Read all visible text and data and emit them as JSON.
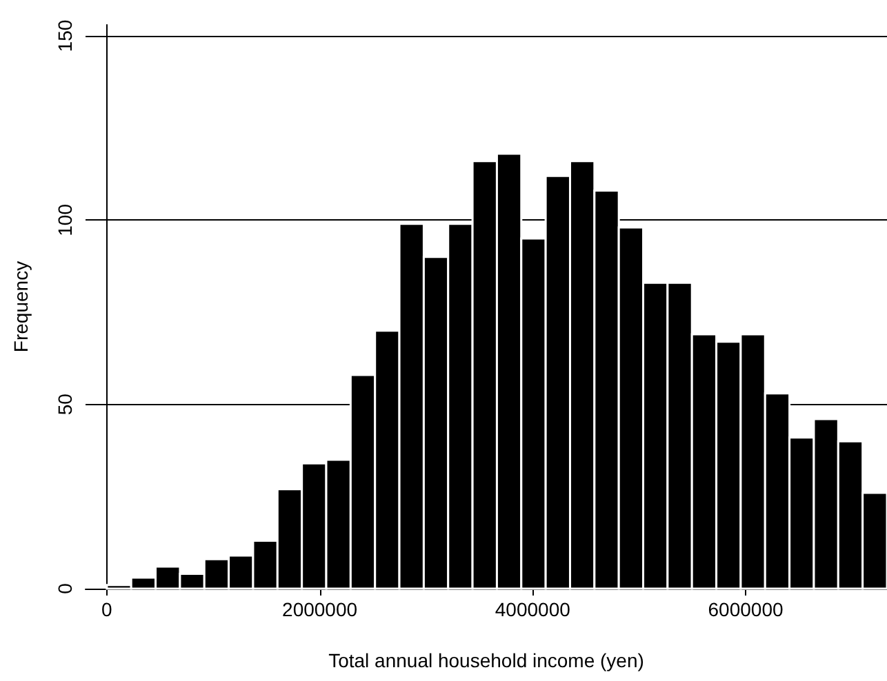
{
  "chart_data": {
    "type": "histogram",
    "xlabel": "Total annual household income (yen)",
    "ylabel": "Frequency",
    "bins": [
      0,
      229000,
      458000,
      687000,
      916000,
      1145000,
      1374000,
      1603000,
      1832000,
      2061000,
      2290000,
      2519000,
      2748000,
      2977000,
      3206000,
      3435000,
      3664000,
      3893000,
      4122000,
      4351000,
      4580000,
      4809000,
      5038000,
      5267000,
      5496000,
      5725000,
      5954000,
      6183000,
      6412000,
      6641000,
      6870000,
      7099000,
      7328000
    ],
    "values": [
      1,
      3,
      6,
      4,
      8,
      9,
      13,
      27,
      34,
      35,
      58,
      70,
      99,
      90,
      99,
      116,
      118,
      95,
      112,
      116,
      108,
      98,
      83,
      83,
      69,
      67,
      69,
      53,
      41,
      46,
      40,
      26
    ],
    "color": "#000000",
    "xlim": [
      -200000,
      7328000
    ],
    "xticks": [
      0,
      2000000,
      4000000,
      6000000
    ],
    "ylim": [
      0,
      153
    ],
    "yticks": [
      0,
      50,
      100,
      150
    ],
    "grid": "y"
  }
}
